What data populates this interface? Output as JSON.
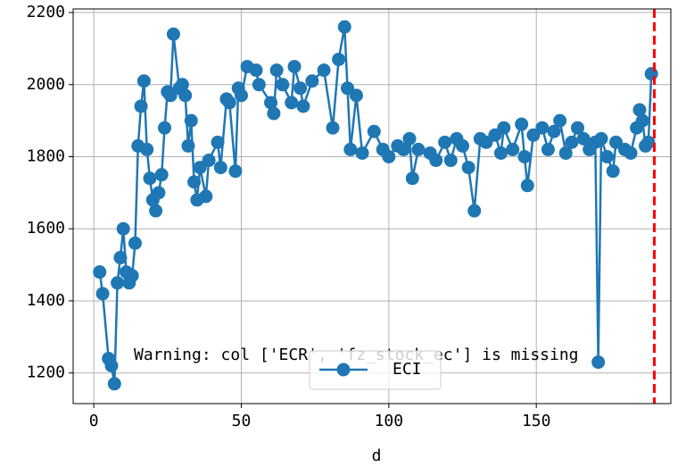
{
  "chart_data": {
    "type": "line",
    "x_label": "d",
    "annotation": "Warning: col ['ECR', 'fz_stock_ec'] is missing",
    "x": [
      2,
      3,
      5,
      6,
      7,
      8,
      9,
      10,
      11,
      12,
      13,
      14,
      15,
      16,
      17,
      18,
      19,
      20,
      21,
      22,
      23,
      24,
      25,
      26,
      27,
      29,
      30,
      31,
      32,
      33,
      34,
      35,
      36,
      38,
      39,
      42,
      43,
      45,
      46,
      48,
      49,
      50,
      52,
      55,
      56,
      60,
      61,
      62,
      64,
      67,
      68,
      70,
      71,
      74,
      78,
      81,
      83,
      85,
      86,
      87,
      89,
      91,
      95,
      98,
      100,
      103,
      105,
      107,
      108,
      110,
      114,
      116,
      119,
      121,
      123,
      125,
      127,
      129,
      131,
      133,
      136,
      138,
      139,
      142,
      145,
      146,
      147,
      149,
      152,
      154,
      156,
      158,
      160,
      162,
      164,
      166,
      168,
      170,
      171,
      172,
      174,
      176,
      177,
      180,
      182,
      184,
      185,
      186,
      187,
      188,
      189
    ],
    "series": [
      {
        "name": "ECI",
        "color": "#1f77b4",
        "values": [
          1480,
          1420,
          1240,
          1220,
          1170,
          1450,
          1520,
          1600,
          1480,
          1450,
          1470,
          1560,
          1830,
          1940,
          2010,
          1820,
          1740,
          1680,
          1650,
          1700,
          1750,
          1880,
          1980,
          1970,
          2140,
          1990,
          2000,
          1970,
          1830,
          1900,
          1730,
          1680,
          1770,
          1690,
          1790,
          1840,
          1770,
          1960,
          1950,
          1760,
          1990,
          1970,
          2050,
          2040,
          2000,
          1950,
          1920,
          2040,
          2000,
          1950,
          2050,
          1990,
          1940,
          2010,
          2040,
          1880,
          2070,
          2160,
          1990,
          1820,
          1970,
          1810,
          1870,
          1820,
          1800,
          1830,
          1820,
          1850,
          1740,
          1820,
          1810,
          1790,
          1840,
          1790,
          1850,
          1830,
          1770,
          1650,
          1850,
          1840,
          1860,
          1810,
          1880,
          1820,
          1890,
          1800,
          1720,
          1860,
          1880,
          1820,
          1870,
          1900,
          1810,
          1840,
          1880,
          1850,
          1820,
          1840,
          1230,
          1850,
          1800,
          1760,
          1840,
          1820,
          1810,
          1880,
          1930,
          1900,
          1830,
          1840,
          2030
        ]
      }
    ],
    "vline": {
      "x": 190,
      "color": "#ff0000"
    },
    "xlim": [
      -7,
      195.6
    ],
    "ylim": [
      1115,
      2210
    ],
    "xticks": [
      0,
      50,
      100,
      150
    ],
    "yticks": [
      1200,
      1400,
      1600,
      1800,
      2000,
      2200
    ],
    "grid": true,
    "legend": "lower center"
  }
}
